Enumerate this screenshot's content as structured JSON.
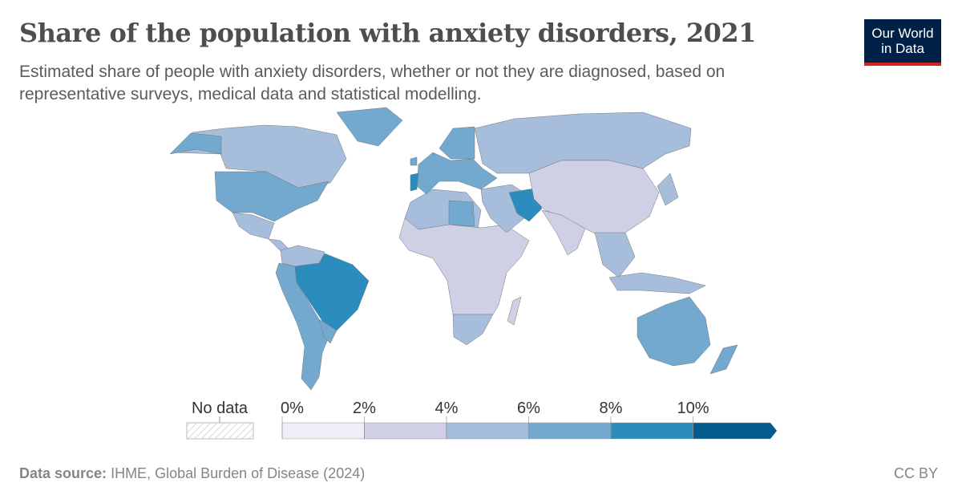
{
  "header": {
    "title": "Share of the population with anxiety disorders, 2021",
    "subtitle": "Estimated share of people with anxiety disorders, whether or not they are diagnosed, based on representative surveys, medical data and statistical modelling.",
    "logo_line1": "Our World",
    "logo_line2": "in Data"
  },
  "footer": {
    "source_label": "Data source:",
    "source_text": "IHME, Global Burden of Disease (2024)",
    "license": "CC BY"
  },
  "chart_data": {
    "type": "choropleth",
    "year": "2021",
    "legend": {
      "no_data_label": "No data",
      "bins": [
        0,
        2,
        4,
        6,
        8,
        10
      ],
      "tick_labels": [
        "0%",
        "2%",
        "4%",
        "6%",
        "8%",
        "10%"
      ],
      "colors": [
        "#efedf5",
        "#cfd0e5",
        "#a6bddb",
        "#74a9cf",
        "#2b8cbe",
        "#045a8d"
      ],
      "placement": "bottom",
      "open_ended_top": true
    },
    "regions": [
      {
        "name": "Canada",
        "value": 5
      },
      {
        "name": "United States",
        "value": 6.5
      },
      {
        "name": "Alaska",
        "value": 6.5
      },
      {
        "name": "Greenland",
        "value": 6.5
      },
      {
        "name": "Mexico",
        "value": 4.5
      },
      {
        "name": "Central America",
        "value": 4.5
      },
      {
        "name": "Northern South America",
        "value": 5
      },
      {
        "name": "Andean & Southern South America",
        "value": 6.5
      },
      {
        "name": "Brazil",
        "value": 9
      },
      {
        "name": "Paraguay/Uruguay",
        "value": 7
      },
      {
        "name": "North Africa",
        "value": 5
      },
      {
        "name": "Libya",
        "value": 6.5
      },
      {
        "name": "Sub-Saharan Africa",
        "value": 3.5
      },
      {
        "name": "Southern Africa",
        "value": 4.5
      },
      {
        "name": "Madagascar",
        "value": 3.5
      },
      {
        "name": "Western Europe",
        "value": 6.5
      },
      {
        "name": "Portugal",
        "value": 8.5
      },
      {
        "name": "Ireland",
        "value": 7
      },
      {
        "name": "Scandinavia",
        "value": 6
      },
      {
        "name": "Russia",
        "value": 4.5
      },
      {
        "name": "Middle East",
        "value": 5
      },
      {
        "name": "Iran",
        "value": 9
      },
      {
        "name": "Central & East Asia",
        "value": 3.5
      },
      {
        "name": "South Asia",
        "value": 3.5
      },
      {
        "name": "Southeast Asia",
        "value": 4.5
      },
      {
        "name": "Indonesia",
        "value": 4
      },
      {
        "name": "Japan",
        "value": 4.5
      },
      {
        "name": "Australia",
        "value": 6.5
      },
      {
        "name": "New Zealand",
        "value": 7
      }
    ]
  }
}
